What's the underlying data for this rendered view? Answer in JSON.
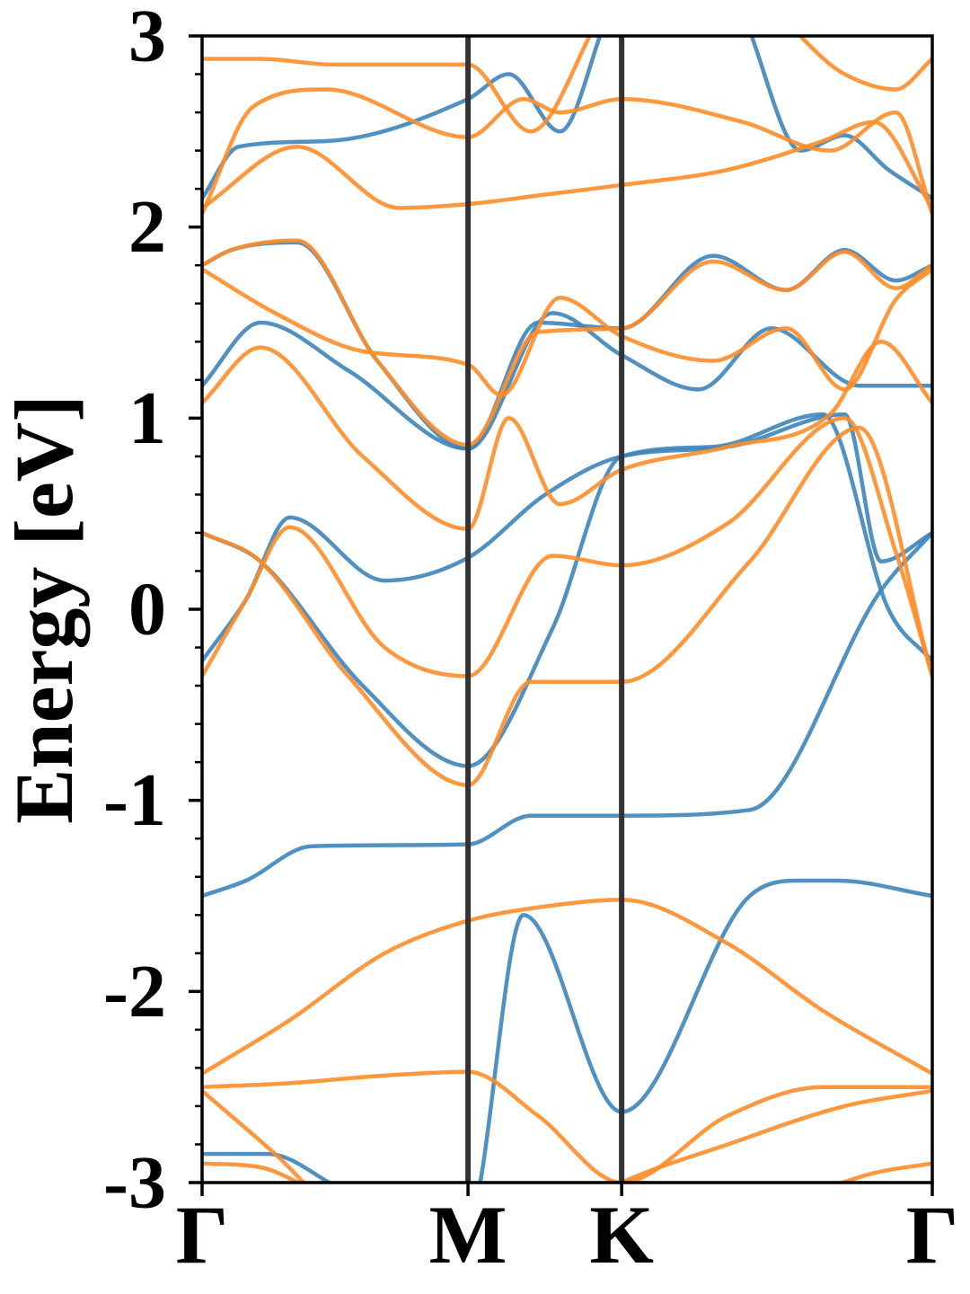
{
  "chart_data": {
    "type": "line",
    "title": "",
    "xlabel": "",
    "ylabel": "Energy [eV]",
    "ylim": [
      -3,
      3
    ],
    "xlim": [
      0,
      1
    ],
    "yticks": [
      {
        "value": -3,
        "label": "-3"
      },
      {
        "value": -2,
        "label": "-2"
      },
      {
        "value": -1,
        "label": "-1"
      },
      {
        "value": 0,
        "label": "0"
      },
      {
        "value": 1,
        "label": "1"
      },
      {
        "value": 2,
        "label": "2"
      },
      {
        "value": 3,
        "label": "3"
      }
    ],
    "xticks": [
      {
        "value": 0,
        "label": "Γ"
      },
      {
        "value": 0.3642,
        "label": "M"
      },
      {
        "value": 0.5746,
        "label": "K"
      },
      {
        "value": 1,
        "label": "Γ"
      }
    ],
    "kpath_lines": [
      0.3642,
      0.5746
    ],
    "grid": false,
    "legend": "none",
    "colors": {
      "blue": "#3d85bb",
      "orange": "#ff8c28",
      "vline": "#333333"
    },
    "series": [
      {
        "color": "blue",
        "x": [
          0,
          0.06,
          0.15,
          0.3642,
          0.45,
          0.5746,
          0.75,
          0.93,
          1
        ],
        "y": [
          -1.5,
          -1.42,
          -1.24,
          -1.23,
          -1.08,
          -1.08,
          -1.05,
          0.1,
          0.4
        ]
      },
      {
        "color": "blue",
        "x": [
          0,
          0.08,
          0.22,
          0.3642,
          0.48,
          0.5746,
          0.7,
          0.85,
          0.94,
          1
        ],
        "y": [
          0.4,
          0.25,
          -0.4,
          -0.82,
          -0.1,
          0.8,
          0.85,
          1.02,
          0.0,
          -0.27
        ]
      },
      {
        "color": "blue",
        "x": [
          0,
          0.06,
          0.12,
          0.25,
          0.3642,
          0.47,
          0.5746,
          0.72,
          0.88,
          0.93,
          1
        ],
        "y": [
          -0.27,
          0.05,
          0.48,
          0.15,
          0.27,
          0.6,
          0.8,
          0.85,
          1.02,
          0.25,
          0.4
        ]
      },
      {
        "color": "blue",
        "x": [
          0,
          0.09,
          0.2,
          0.3642,
          0.44,
          0.5746,
          0.75,
          0.82,
          0.87,
          1
        ],
        "y": [
          -2.85,
          -2.85,
          -3.05,
          -3.2,
          -1.6,
          -2.63,
          -1.5,
          -1.42,
          -1.42,
          -1.5
        ]
      },
      {
        "color": "blue",
        "x": [
          0,
          0.08,
          0.2,
          0.3642,
          0.48,
          0.5746,
          0.68,
          0.78,
          0.9,
          1
        ],
        "y": [
          1.17,
          1.5,
          1.25,
          0.84,
          1.55,
          1.33,
          1.15,
          1.47,
          1.17,
          1.17
        ]
      },
      {
        "color": "blue",
        "x": [
          0,
          0.04,
          0.13,
          0.24,
          0.3642,
          0.46,
          0.5746,
          0.7,
          0.8,
          0.88,
          0.95,
          1
        ],
        "y": [
          1.8,
          1.88,
          1.92,
          1.3,
          0.84,
          1.5,
          1.47,
          1.85,
          1.67,
          1.88,
          1.72,
          1.8
        ]
      },
      {
        "color": "blue",
        "x": [
          0,
          0.05,
          0.17,
          0.3642,
          0.42,
          0.49,
          0.5746,
          0.72,
          0.82,
          0.88,
          0.94,
          1
        ],
        "y": [
          2.15,
          2.42,
          2.45,
          2.67,
          2.8,
          2.5,
          3.2,
          3.2,
          2.4,
          2.48,
          2.3,
          2.15
        ]
      },
      {
        "color": "orange",
        "x": [
          0,
          0.08,
          0.2,
          0.3642,
          0.45,
          0.5746,
          0.75,
          0.9,
          1
        ],
        "y": [
          0.4,
          0.25,
          -0.35,
          -0.92,
          -0.38,
          -0.38,
          0.25,
          0.95,
          -0.35
        ]
      },
      {
        "color": "orange",
        "x": [
          0,
          0.06,
          0.12,
          0.25,
          0.3642,
          0.48,
          0.5746,
          0.72,
          0.88,
          0.95,
          1
        ],
        "y": [
          -0.35,
          0.05,
          0.43,
          -0.2,
          -0.35,
          0.28,
          0.23,
          0.45,
          1.0,
          0.3,
          -0.35
        ]
      },
      {
        "color": "orange",
        "x": [
          0,
          0.08,
          0.22,
          0.3642,
          0.42,
          0.49,
          0.5746,
          0.72,
          0.86,
          0.93,
          1
        ],
        "y": [
          1.08,
          1.37,
          0.8,
          0.42,
          1.0,
          0.55,
          0.73,
          0.85,
          1.02,
          1.4,
          1.08
        ]
      },
      {
        "color": "orange",
        "x": [
          0,
          0.1,
          0.22,
          0.3642,
          0.41,
          0.49,
          0.5746,
          0.7,
          0.8,
          0.88,
          0.95,
          1
        ],
        "y": [
          1.78,
          1.55,
          1.35,
          1.28,
          1.12,
          1.63,
          1.43,
          1.3,
          1.47,
          1.15,
          1.62,
          1.78
        ]
      },
      {
        "color": "orange",
        "x": [
          0,
          0.04,
          0.13,
          0.24,
          0.3642,
          0.46,
          0.5746,
          0.7,
          0.8,
          0.88,
          0.95,
          1
        ],
        "y": [
          1.8,
          1.88,
          1.93,
          1.3,
          0.86,
          1.45,
          1.47,
          1.82,
          1.67,
          1.87,
          1.68,
          1.8
        ]
      },
      {
        "color": "orange",
        "x": [
          0,
          0.13,
          0.27,
          0.3642,
          0.47,
          0.5746,
          0.72,
          0.85,
          0.92,
          1
        ],
        "y": [
          2.1,
          2.42,
          2.1,
          2.12,
          2.17,
          2.22,
          2.3,
          2.45,
          2.55,
          2.1
        ]
      },
      {
        "color": "orange",
        "x": [
          0,
          0.07,
          0.17,
          0.3642,
          0.44,
          0.49,
          0.5746,
          0.74,
          0.86,
          0.95,
          1
        ],
        "y": [
          2.07,
          2.63,
          2.72,
          2.47,
          2.67,
          2.6,
          2.67,
          2.55,
          2.4,
          2.6,
          2.07
        ]
      },
      {
        "color": "orange",
        "x": [
          0,
          0.08,
          0.18,
          0.3642,
          0.45,
          0.5746,
          0.74,
          0.88,
          0.95,
          1
        ],
        "y": [
          2.88,
          2.88,
          2.85,
          2.85,
          2.5,
          3.2,
          3.2,
          2.8,
          2.72,
          2.88
        ]
      },
      {
        "color": "orange",
        "x": [
          0,
          0.12,
          0.25,
          0.3642,
          0.48,
          0.5746,
          0.72,
          0.85,
          1
        ],
        "y": [
          -2.43,
          -2.15,
          -1.8,
          -1.63,
          -1.55,
          -1.52,
          -1.75,
          -2.1,
          -2.43
        ]
      },
      {
        "color": "orange",
        "x": [
          0,
          0.12,
          0.25,
          0.3642,
          0.46,
          0.5746,
          0.72,
          0.85,
          1
        ],
        "y": [
          -2.5,
          -2.48,
          -2.44,
          -2.42,
          -2.65,
          -3.0,
          -2.65,
          -2.5,
          -2.5
        ]
      },
      {
        "color": "orange",
        "x": [
          0,
          0.1,
          0.2,
          0.3642,
          0.48,
          0.5746,
          0.72,
          0.88,
          1
        ],
        "y": [
          -2.52,
          -2.85,
          -3.2,
          -3.3,
          -3.2,
          -3.0,
          -2.8,
          -2.6,
          -2.52
        ]
      },
      {
        "color": "orange",
        "x": [
          0,
          0.08,
          0.16,
          0.3642,
          0.5746,
          0.8,
          0.92,
          1
        ],
        "y": [
          -2.9,
          -2.92,
          -3.05,
          -3.3,
          -3.3,
          -3.1,
          -2.95,
          -2.9
        ]
      }
    ]
  }
}
